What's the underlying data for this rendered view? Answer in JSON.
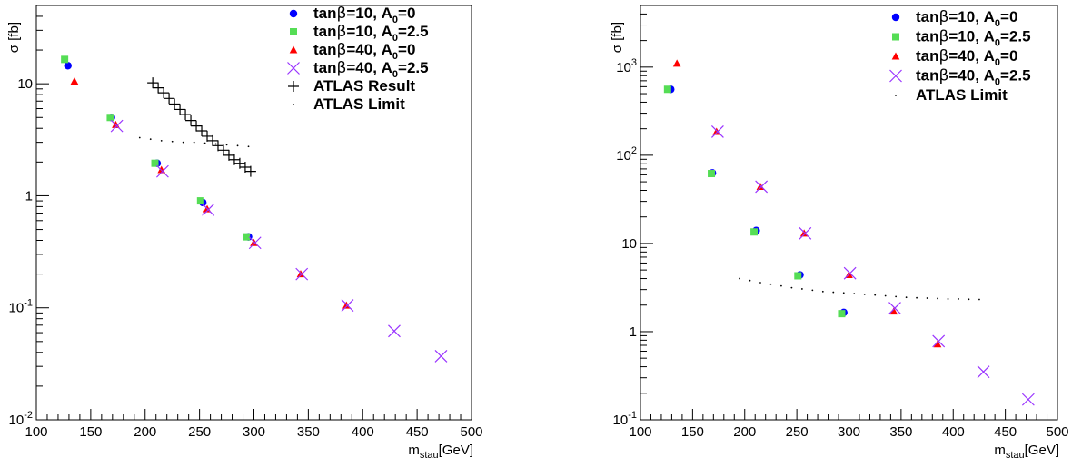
{
  "chart_data": [
    {
      "type": "scatter",
      "title": "",
      "xlabel": {
        "main": "m",
        "sub": "stau",
        "unit": "[GeV]"
      },
      "ylabel": "σ [fb]",
      "xlim": [
        100,
        500
      ],
      "ylim": [
        0.01,
        50
      ],
      "y_log": true,
      "x_ticks": [
        "100",
        "150",
        "200",
        "250",
        "300",
        "350",
        "400",
        "450",
        "500"
      ],
      "x_tick_values": [
        100,
        150,
        200,
        250,
        300,
        350,
        400,
        450,
        500
      ],
      "y_ticks": [
        {
          "value": 0.01,
          "base": "10",
          "exp": "-2"
        },
        {
          "value": 0.1,
          "base": "10",
          "exp": "-1"
        },
        {
          "value": 1,
          "base": "1",
          "exp": ""
        },
        {
          "value": 10,
          "base": "10",
          "exp": ""
        }
      ],
      "grid": false,
      "legend_position": "top-right",
      "series": [
        {
          "name": "tanβ=10, A0=0",
          "label_pre": "tan",
          "label_beta": "β",
          "label_mid": "=10, A",
          "label_sub": "0",
          "label_post": "=0",
          "marker": "circle",
          "color": "#0000ff",
          "x": [
            129,
            169,
            211,
            253,
            295
          ],
          "y": [
            14.5,
            5.0,
            1.95,
            0.87,
            0.43
          ]
        },
        {
          "name": "tanβ=10, A0=2.5",
          "label_pre": "tan",
          "label_beta": "β",
          "label_mid": "=10, A",
          "label_sub": "0",
          "label_post": "=2.5",
          "marker": "square",
          "color": "#55dd55",
          "x": [
            126,
            168,
            209,
            251,
            293
          ],
          "y": [
            16.5,
            5.0,
            1.95,
            0.9,
            0.43
          ]
        },
        {
          "name": "tanβ=40, A0=0",
          "label_pre": "tan",
          "label_beta": "β",
          "label_mid": "=40, A",
          "label_sub": "0",
          "label_post": "=0",
          "marker": "triangle",
          "color": "#ff0000",
          "x": [
            135,
            173,
            215,
            257,
            300,
            343,
            385
          ],
          "y": [
            10.5,
            4.3,
            1.7,
            0.76,
            0.38,
            0.2,
            0.105
          ]
        },
        {
          "name": "tanβ=40, A0=2.5",
          "label_pre": "tan",
          "label_beta": "β",
          "label_mid": "=40, A",
          "label_sub": "0",
          "label_post": "=2.5",
          "marker": "cross",
          "color": "#9933ff",
          "x": [
            174,
            216,
            258,
            301,
            344,
            386,
            429,
            472
          ],
          "y": [
            4.2,
            1.65,
            0.75,
            0.38,
            0.2,
            0.105,
            0.062,
            0.037
          ]
        },
        {
          "name": "ATLAS Result",
          "label_pre": "ATLAS Result",
          "marker": "plus",
          "color": "#000000",
          "x": [
            207,
            212,
            217,
            222,
            227,
            232,
            237,
            242,
            247,
            252,
            257,
            262,
            267,
            272,
            277,
            282,
            287,
            292,
            297
          ],
          "y": [
            10.2,
            9.2,
            8.3,
            7.4,
            6.6,
            5.9,
            5.3,
            4.7,
            4.2,
            3.8,
            3.4,
            3.1,
            2.8,
            2.55,
            2.3,
            2.1,
            1.95,
            1.8,
            1.65
          ]
        },
        {
          "name": "ATLAS Limit",
          "label_pre": "ATLAS Limit",
          "marker": "dot",
          "color": "#000000",
          "x": [
            195,
            205,
            215,
            225,
            235,
            245,
            255,
            265,
            275,
            285,
            295
          ],
          "y": [
            3.3,
            3.2,
            3.1,
            3.05,
            3.0,
            3.0,
            2.95,
            2.9,
            2.85,
            2.8,
            2.75
          ]
        }
      ]
    },
    {
      "type": "scatter",
      "title": "",
      "xlabel": {
        "main": "m",
        "sub": "stau",
        "unit": "[GeV]"
      },
      "ylabel": "σ [fb]",
      "xlim": [
        100,
        500
      ],
      "ylim": [
        0.1,
        5000
      ],
      "y_log": true,
      "x_ticks": [
        "100",
        "150",
        "200",
        "250",
        "300",
        "350",
        "400",
        "450",
        "500"
      ],
      "x_tick_values": [
        100,
        150,
        200,
        250,
        300,
        350,
        400,
        450,
        500
      ],
      "y_ticks": [
        {
          "value": 0.1,
          "base": "10",
          "exp": "-1"
        },
        {
          "value": 1,
          "base": "1",
          "exp": ""
        },
        {
          "value": 10,
          "base": "10",
          "exp": ""
        },
        {
          "value": 100,
          "base": "10",
          "exp": "2"
        },
        {
          "value": 1000,
          "base": "10",
          "exp": "3"
        }
      ],
      "grid": false,
      "legend_position": "top-right",
      "series": [
        {
          "name": "tanβ=10, A0=0",
          "label_pre": "tan",
          "label_beta": "β",
          "label_mid": "=10, A",
          "label_sub": "0",
          "label_post": "=0",
          "marker": "circle",
          "color": "#0000ff",
          "x": [
            129,
            169,
            211,
            253,
            295
          ],
          "y": [
            560,
            63,
            14,
            4.4,
            1.65
          ]
        },
        {
          "name": "tanβ=10, A0=2.5",
          "label_pre": "tan",
          "label_beta": "β",
          "label_mid": "=10, A",
          "label_sub": "0",
          "label_post": "=2.5",
          "marker": "square",
          "color": "#55dd55",
          "x": [
            126,
            168,
            209,
            251,
            293
          ],
          "y": [
            560,
            62,
            13.5,
            4.3,
            1.6
          ]
        },
        {
          "name": "tanβ=40, A0=0",
          "label_pre": "tan",
          "label_beta": "β",
          "label_mid": "=40, A",
          "label_sub": "0",
          "label_post": "=0",
          "marker": "triangle",
          "color": "#ff0000",
          "x": [
            135,
            173,
            215,
            257,
            300,
            343,
            385
          ],
          "y": [
            1100,
            185,
            44,
            13,
            4.4,
            1.7,
            0.72
          ]
        },
        {
          "name": "tanβ=40, A0=2.5",
          "label_pre": "tan",
          "label_beta": "β",
          "label_mid": "=40, A",
          "label_sub": "0",
          "label_post": "=2.5",
          "marker": "cross",
          "color": "#9933ff",
          "x": [
            174,
            216,
            258,
            301,
            344,
            386,
            429,
            472
          ],
          "y": [
            185,
            44,
            13,
            4.6,
            1.85,
            0.78,
            0.35,
            0.17
          ]
        },
        {
          "name": "ATLAS Limit",
          "label_pre": "ATLAS Limit",
          "marker": "dot",
          "color": "#000000",
          "x": [
            195,
            205,
            215,
            225,
            235,
            245,
            255,
            265,
            275,
            285,
            295,
            305,
            315,
            325,
            335,
            345,
            355,
            365,
            375,
            385,
            395,
            405,
            415,
            425
          ],
          "y": [
            4.0,
            3.8,
            3.6,
            3.45,
            3.3,
            3.15,
            3.05,
            2.95,
            2.85,
            2.8,
            2.75,
            2.7,
            2.65,
            2.6,
            2.55,
            2.5,
            2.45,
            2.42,
            2.4,
            2.38,
            2.35,
            2.35,
            2.33,
            2.32
          ]
        }
      ]
    }
  ]
}
